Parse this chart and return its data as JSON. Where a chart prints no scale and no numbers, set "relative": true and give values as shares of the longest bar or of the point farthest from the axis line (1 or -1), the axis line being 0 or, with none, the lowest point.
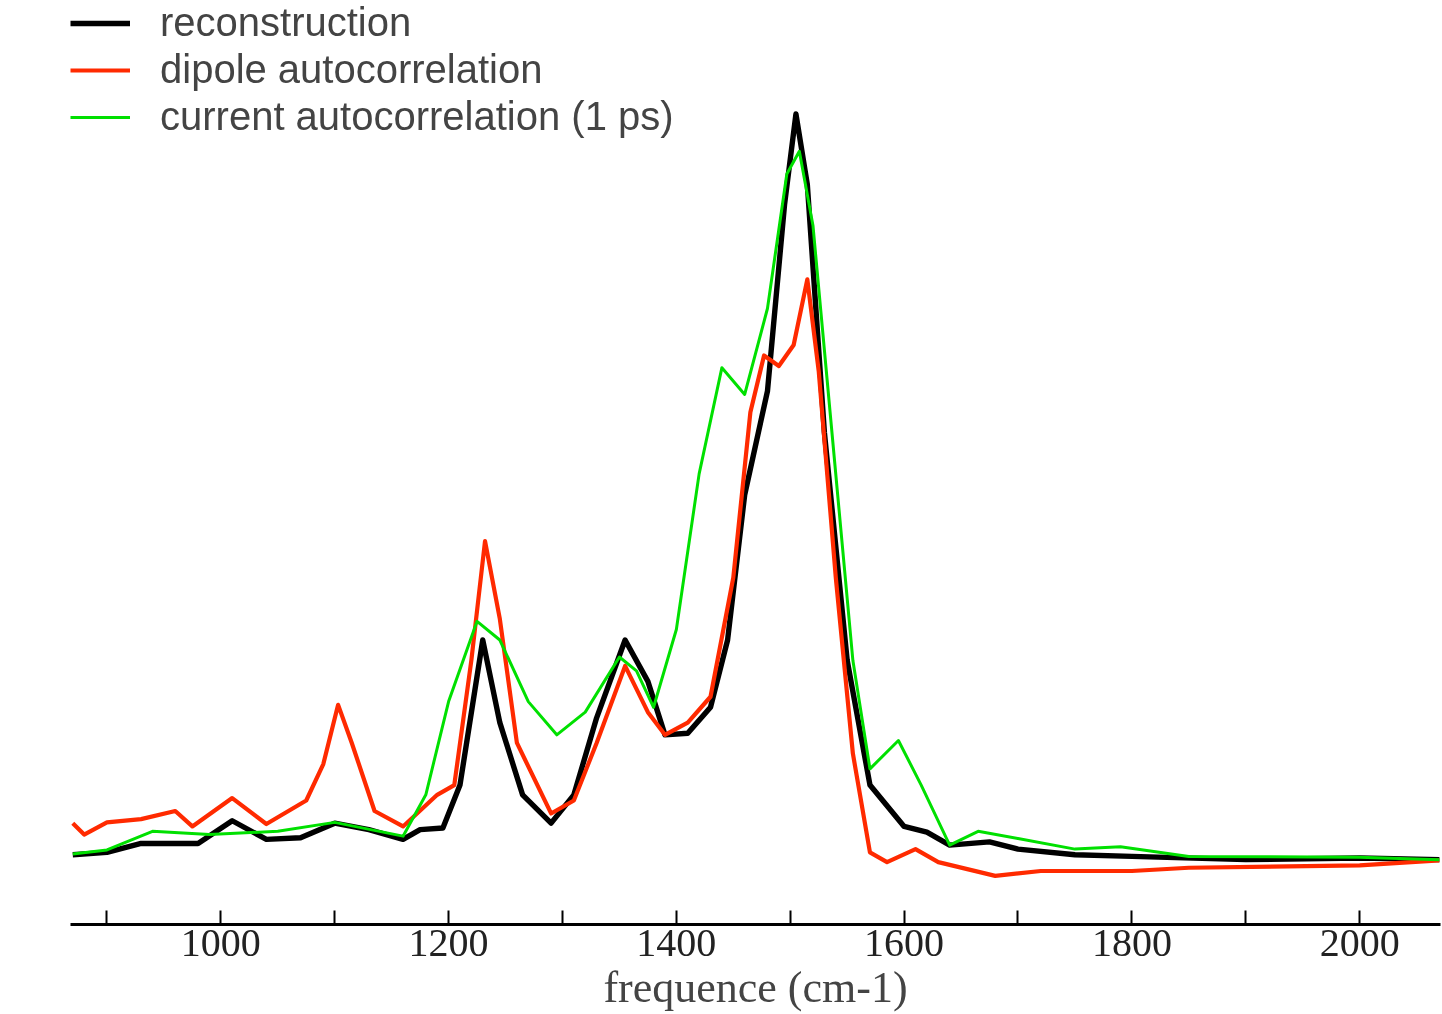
{
  "chart_data": {
    "type": "line",
    "relative": true,
    "xlabel": "frequence (cm-1)",
    "xlim": [
      868,
      2071
    ],
    "xticks": [
      {
        "value": 900,
        "label": null
      },
      1000,
      {
        "value": 1100,
        "label": null
      },
      1200,
      {
        "value": 1300,
        "label": null
      },
      1400,
      {
        "value": 1500,
        "label": null
      },
      1600,
      {
        "value": 1700,
        "label": null
      },
      1800,
      {
        "value": 1900,
        "label": null
      },
      2000
    ],
    "legend": "top left",
    "grid": false,
    "line_style": "solid",
    "marker": "none",
    "series": [
      {
        "name": "reconstruction",
        "color": "#000000",
        "x": [
          870,
          900,
          930,
          980,
          1010,
          1040,
          1070,
          1100,
          1130,
          1160,
          1175,
          1195,
          1210,
          1230,
          1245,
          1265,
          1290,
          1310,
          1330,
          1355,
          1375,
          1390,
          1410,
          1430,
          1445,
          1460,
          1480,
          1495,
          1505,
          1515,
          1530,
          1550,
          1570,
          1600,
          1620,
          1640,
          1675,
          1700,
          1750,
          1800,
          1900,
          2000,
          2070
        ],
        "values": [
          0.086,
          0.089,
          0.1,
          0.1,
          0.128,
          0.105,
          0.107,
          0.125,
          0.117,
          0.105,
          0.117,
          0.119,
          0.172,
          0.351,
          0.249,
          0.16,
          0.125,
          0.16,
          0.255,
          0.351,
          0.3,
          0.234,
          0.236,
          0.268,
          0.351,
          0.53,
          0.658,
          0.888,
          1.0,
          0.913,
          0.607,
          0.326,
          0.172,
          0.121,
          0.114,
          0.098,
          0.102,
          0.093,
          0.086,
          0.084,
          0.08,
          0.082,
          0.08
        ]
      },
      {
        "name": "dipole autocorrelation",
        "color": "#ff2a00",
        "x": [
          870,
          880,
          900,
          930,
          960,
          975,
          1010,
          1040,
          1075,
          1090,
          1103,
          1115,
          1135,
          1160,
          1190,
          1205,
          1220,
          1232,
          1245,
          1260,
          1290,
          1310,
          1330,
          1355,
          1375,
          1390,
          1410,
          1430,
          1450,
          1465,
          1477,
          1490,
          1503,
          1515,
          1525,
          1540,
          1555,
          1570,
          1585,
          1610,
          1630,
          1680,
          1720,
          1800,
          1850,
          2000,
          2070
        ],
        "values": [
          0.125,
          0.111,
          0.126,
          0.13,
          0.14,
          0.121,
          0.156,
          0.124,
          0.153,
          0.198,
          0.271,
          0.224,
          0.14,
          0.121,
          0.16,
          0.172,
          0.326,
          0.473,
          0.377,
          0.224,
          0.137,
          0.153,
          0.224,
          0.319,
          0.262,
          0.234,
          0.249,
          0.281,
          0.428,
          0.632,
          0.702,
          0.689,
          0.715,
          0.796,
          0.683,
          0.428,
          0.211,
          0.089,
          0.077,
          0.093,
          0.077,
          0.06,
          0.066,
          0.066,
          0.07,
          0.073,
          0.079
        ]
      },
      {
        "name": "current autocorrelation (1 ps)",
        "color": "#00e000",
        "x": [
          870,
          900,
          940,
          990,
          1050,
          1100,
          1160,
          1180,
          1200,
          1225,
          1245,
          1270,
          1295,
          1320,
          1350,
          1365,
          1380,
          1400,
          1420,
          1440,
          1460,
          1480,
          1497,
          1508,
          1520,
          1535,
          1555,
          1570,
          1595,
          1615,
          1640,
          1665,
          1700,
          1750,
          1790,
          1850,
          2000,
          2070
        ],
        "values": [
          0.087,
          0.092,
          0.115,
          0.111,
          0.115,
          0.126,
          0.109,
          0.16,
          0.275,
          0.374,
          0.351,
          0.275,
          0.234,
          0.262,
          0.33,
          0.313,
          0.268,
          0.364,
          0.556,
          0.687,
          0.654,
          0.76,
          0.926,
          0.954,
          0.862,
          0.632,
          0.326,
          0.192,
          0.227,
          0.172,
          0.098,
          0.115,
          0.106,
          0.093,
          0.096,
          0.084,
          0.083,
          0.08
        ]
      }
    ]
  }
}
